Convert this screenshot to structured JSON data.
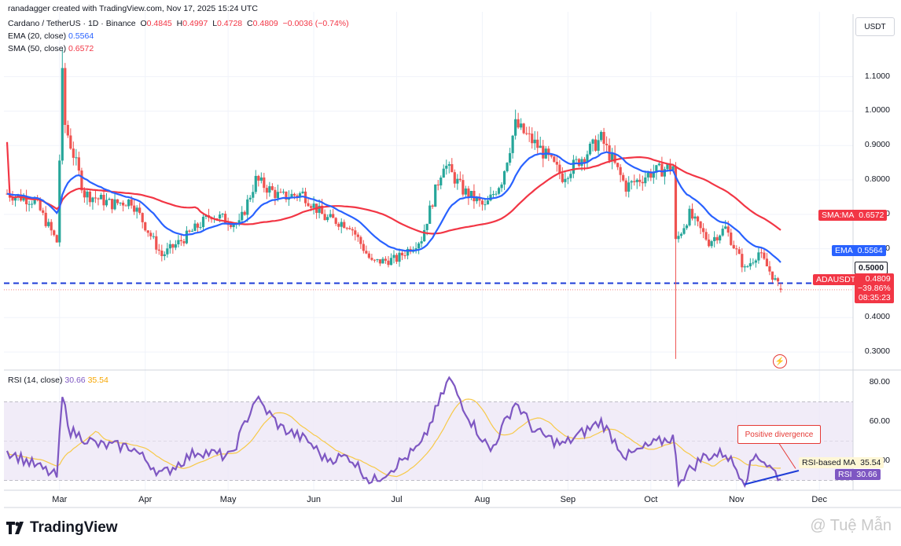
{
  "header": {
    "credit": "ranadagger created with TradingView.com, Nov 17, 2025 15:24 UTC",
    "symbol": "Cardano / TetherUS · 1D · Binance",
    "ohlc_o_label": "O",
    "ohlc_o": "0.4845",
    "ohlc_h_label": "H",
    "ohlc_h": "0.4997",
    "ohlc_l_label": "L",
    "ohlc_l": "0.4728",
    "ohlc_c_label": "C",
    "ohlc_c": "0.4809",
    "ohlc_change": "−0.0036 (−0.74%)",
    "ema_label": "EMA (20, close)",
    "ema_value": "0.5564",
    "sma_label": "SMA (50, close)",
    "sma_value": "0.6572",
    "rsi_label": "RSI (14, close)",
    "rsi_value": "30.66",
    "rsi_ma_value": "35.54"
  },
  "price_axis": {
    "currency": "USDT",
    "ticks": [
      "1.1000",
      "1.0000",
      "0.9000",
      "0.8000",
      "0.7000",
      "0.6000",
      "0.5000",
      "0.4000",
      "0.3000"
    ]
  },
  "rsi_axis": {
    "ticks": [
      "80.00",
      "60.00",
      "40.00"
    ]
  },
  "tags": {
    "sma_name": "SMA:MA",
    "sma_value": "0.6572",
    "ema_name": "EMA",
    "ema_value": "0.5564",
    "level_value": "0.5000",
    "symbol_name": "ADAUSDT",
    "price_value": "0.4809",
    "price_change": "−39.86%",
    "countdown": "08:35:23",
    "rsi_ma_name": "RSI-based MA",
    "rsi_ma_value": "35.54",
    "rsi_name": "RSI",
    "rsi_value": "30.66"
  },
  "months": [
    "Mar",
    "Apr",
    "May",
    "Jun",
    "Jul",
    "Aug",
    "Sep",
    "Oct",
    "Nov",
    "Dec"
  ],
  "annotation": "Positive divergence",
  "footer": {
    "brand": "TradingView",
    "watermark": "@ Tuệ Mẫn"
  },
  "colors": {
    "up": "#26a69a",
    "down": "#ef5350",
    "ema": "#2962ff",
    "sma": "#f23645",
    "rsi": "#7e57c2",
    "rsi_ma": "#f7c948",
    "level": "#1e3cd7",
    "rsi_band": "#ede7f6"
  },
  "chart_data": [
    {
      "type": "candlestick",
      "title": "Cardano / TetherUS · 1D · Binance",
      "x_range": [
        "2025-02-10",
        "2025-11-17"
      ],
      "ylim": [
        0.25,
        1.22
      ],
      "horizontal_level": 0.5,
      "anchors": [
        [
          "2025-02-10",
          0.76
        ],
        [
          "2025-02-20",
          0.74
        ],
        [
          "2025-02-28",
          0.62
        ],
        [
          "2025-03-02",
          1.1
        ],
        [
          "2025-03-03",
          0.96
        ],
        [
          "2025-03-10",
          0.76
        ],
        [
          "2025-03-20",
          0.73
        ],
        [
          "2025-03-27",
          0.74
        ],
        [
          "2025-04-07",
          0.58
        ],
        [
          "2025-04-15",
          0.63
        ],
        [
          "2025-04-25",
          0.7
        ],
        [
          "2025-05-05",
          0.67
        ],
        [
          "2025-05-11",
          0.8
        ],
        [
          "2025-05-20",
          0.75
        ],
        [
          "2025-05-28",
          0.76
        ],
        [
          "2025-06-05",
          0.69
        ],
        [
          "2025-06-14",
          0.67
        ],
        [
          "2025-06-22",
          0.56
        ],
        [
          "2025-07-01",
          0.57
        ],
        [
          "2025-07-10",
          0.63
        ],
        [
          "2025-07-18",
          0.85
        ],
        [
          "2025-07-25",
          0.77
        ],
        [
          "2025-08-02",
          0.72
        ],
        [
          "2025-08-08",
          0.8
        ],
        [
          "2025-08-13",
          0.96
        ],
        [
          "2025-08-22",
          0.89
        ],
        [
          "2025-08-30",
          0.81
        ],
        [
          "2025-09-13",
          0.92
        ],
        [
          "2025-09-22",
          0.78
        ],
        [
          "2025-10-01",
          0.82
        ],
        [
          "2025-10-09",
          0.84
        ],
        [
          "2025-10-10",
          0.62
        ],
        [
          "2025-10-15",
          0.7
        ],
        [
          "2025-10-22",
          0.62
        ],
        [
          "2025-10-28",
          0.66
        ],
        [
          "2025-11-04",
          0.54
        ],
        [
          "2025-11-09",
          0.59
        ],
        [
          "2025-11-17",
          0.48
        ]
      ],
      "spike_low": {
        "date": "2025-10-10",
        "low": 0.28
      },
      "series": [
        {
          "name": "EMA (20, close)",
          "last": 0.5564
        },
        {
          "name": "SMA (50, close)",
          "last": 0.6572
        }
      ]
    },
    {
      "type": "line",
      "title": "RSI (14, close)",
      "ylim": [
        25,
        85
      ],
      "band": [
        30,
        70
      ],
      "midline": 50,
      "anchors": [
        [
          "2025-02-10",
          45
        ],
        [
          "2025-02-28",
          32
        ],
        [
          "2025-03-02",
          72
        ],
        [
          "2025-03-05",
          55
        ],
        [
          "2025-03-15",
          48
        ],
        [
          "2025-03-27",
          47
        ],
        [
          "2025-04-07",
          33
        ],
        [
          "2025-04-20",
          45
        ],
        [
          "2025-05-02",
          42
        ],
        [
          "2025-05-11",
          72
        ],
        [
          "2025-05-20",
          57
        ],
        [
          "2025-05-30",
          50
        ],
        [
          "2025-06-05",
          41
        ],
        [
          "2025-06-14",
          42
        ],
        [
          "2025-06-22",
          29
        ],
        [
          "2025-07-01",
          38
        ],
        [
          "2025-07-10",
          48
        ],
        [
          "2025-07-20",
          82
        ],
        [
          "2025-07-28",
          60
        ],
        [
          "2025-08-04",
          45
        ],
        [
          "2025-08-13",
          70
        ],
        [
          "2025-08-20",
          55
        ],
        [
          "2025-08-30",
          48
        ],
        [
          "2025-09-13",
          60
        ],
        [
          "2025-09-22",
          42
        ],
        [
          "2025-10-01",
          48
        ],
        [
          "2025-10-09",
          52
        ],
        [
          "2025-10-11",
          30
        ],
        [
          "2025-10-20",
          42
        ],
        [
          "2025-10-28",
          44
        ],
        [
          "2025-11-04",
          30
        ],
        [
          "2025-11-08",
          44
        ],
        [
          "2025-11-17",
          31
        ]
      ],
      "series": [
        {
          "name": "RSI",
          "last": 30.66
        },
        {
          "name": "RSI-based MA",
          "last": 35.54
        }
      ],
      "annotation": "Positive divergence"
    }
  ]
}
